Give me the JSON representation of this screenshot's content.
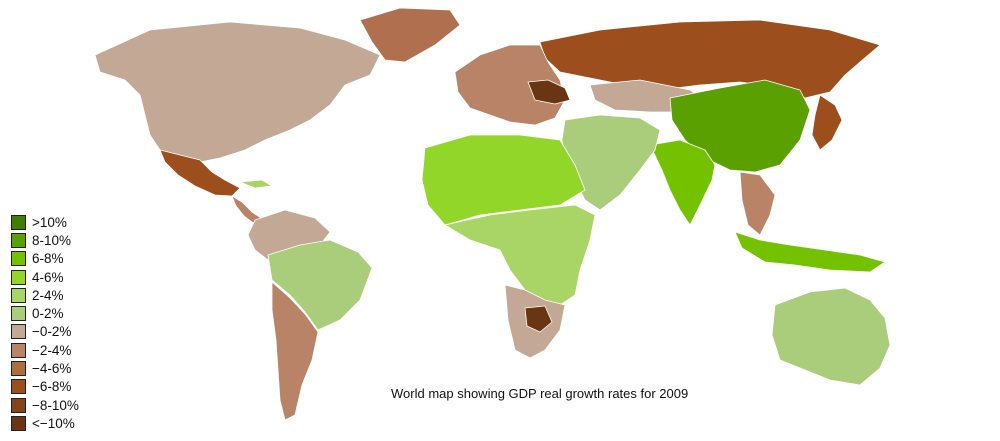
{
  "caption": "World map showing GDP real growth rates for 2009",
  "legend": [
    {
      "label": ">10%",
      "color": "#3f7f00"
    },
    {
      "label": "8-10%",
      "color": "#5aa000"
    },
    {
      "label": "6-8%",
      "color": "#74c100"
    },
    {
      "label": "4-6%",
      "color": "#93d62a"
    },
    {
      "label": "2-4%",
      "color": "#a9d466"
    },
    {
      "label": "0-2%",
      "color": "#aacd7c"
    },
    {
      "label": "−0-2%",
      "color": "#c2a895"
    },
    {
      "label": "−2-4%",
      "color": "#b88366"
    },
    {
      "label": "−4-6%",
      "color": "#ad6d3e"
    },
    {
      "label": "−6-8%",
      "color": "#9c4e1c"
    },
    {
      "label": "−8-10%",
      "color": "#86441a"
    },
    {
      "label": "<−10%",
      "color": "#6a3512"
    }
  ],
  "regions": [
    {
      "name": "north-america",
      "color": "#c2a895"
    },
    {
      "name": "greenland",
      "color": "#b07050"
    },
    {
      "name": "mexico",
      "color": "#9c4e1c"
    },
    {
      "name": "central-america",
      "color": "#b88366"
    },
    {
      "name": "cuba",
      "color": "#a9d466"
    },
    {
      "name": "south-america-north",
      "color": "#c2a895"
    },
    {
      "name": "brazil",
      "color": "#aacd7c"
    },
    {
      "name": "argentina-chile",
      "color": "#b88366"
    },
    {
      "name": "russia",
      "color": "#9c4e1c"
    },
    {
      "name": "europe",
      "color": "#b88366"
    },
    {
      "name": "ukraine",
      "color": "#6a3512"
    },
    {
      "name": "kazakhstan",
      "color": "#c2a895"
    },
    {
      "name": "china",
      "color": "#5aa000"
    },
    {
      "name": "india",
      "color": "#74c100"
    },
    {
      "name": "middle-east",
      "color": "#aacd7c"
    },
    {
      "name": "africa-north",
      "color": "#93d62a"
    },
    {
      "name": "africa-central",
      "color": "#a9d466"
    },
    {
      "name": "southern-africa",
      "color": "#c2a895"
    },
    {
      "name": "botswana",
      "color": "#6a3512"
    },
    {
      "name": "australia",
      "color": "#aacd7c"
    },
    {
      "name": "indonesia",
      "color": "#74c100"
    },
    {
      "name": "japan",
      "color": "#9c4e1c"
    },
    {
      "name": "southeast-asia",
      "color": "#b88366"
    }
  ]
}
